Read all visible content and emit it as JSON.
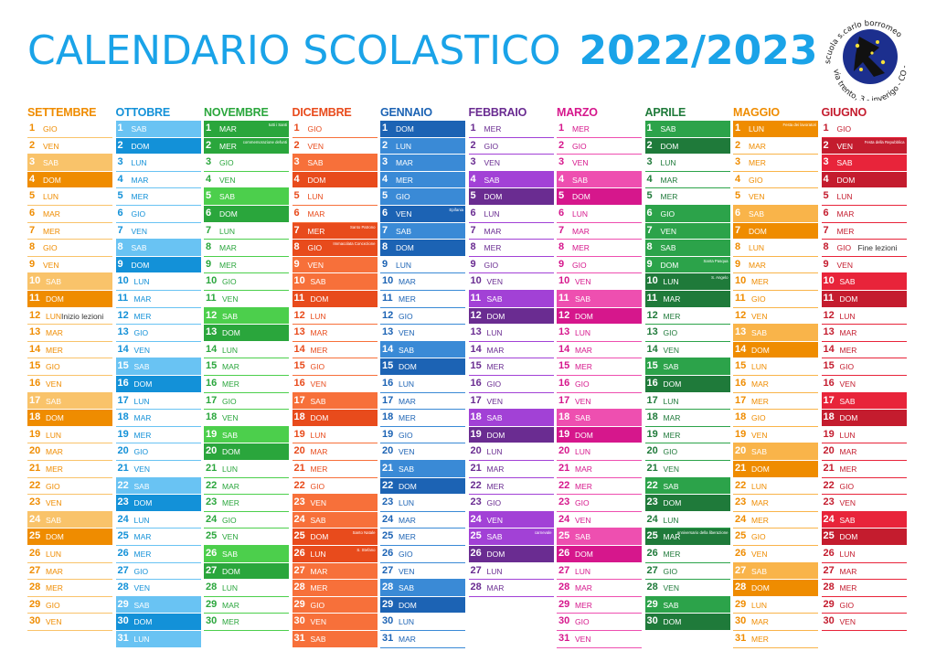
{
  "title": {
    "main": "CALENDARIO SCOLASTICO",
    "year": "2022/2023"
  },
  "logo": {
    "text": "scuola s.carlo borromeo - via trento, 3 - inverigo - CO -"
  },
  "months": [
    {
      "name": "SETTEMBRE",
      "color": "#ef8c00",
      "light": "#f9c36a",
      "days": 30,
      "startDow": 4,
      "highlights": {
        "3": "light",
        "4": "dark",
        "10": "light",
        "11": "dark",
        "17": "light",
        "18": "dark",
        "24": "light",
        "25": "dark"
      },
      "notes": {
        "12": "Inizio lezioni"
      }
    },
    {
      "name": "OTTOBRE",
      "color": "#1391d8",
      "light": "#69c3f3",
      "days": 31,
      "startDow": 6,
      "highlights": {
        "1": "light",
        "2": "dark",
        "8": "light",
        "9": "dark",
        "15": "light",
        "16": "dark",
        "22": "light",
        "23": "dark",
        "29": "light",
        "30": "dark",
        "31": "light"
      },
      "notes": {}
    },
    {
      "name": "NOVEMBRE",
      "color": "#2aa63c",
      "light": "#4ccf4c",
      "days": 30,
      "startDow": 2,
      "highlights": {
        "1": "dark",
        "2": "dark",
        "5": "light",
        "6": "dark",
        "12": "light",
        "13": "dark",
        "19": "light",
        "20": "dark",
        "26": "light",
        "27": "dark"
      },
      "notes": {
        "1": "tutti i Santi",
        "2": "commemorazione defunti"
      }
    },
    {
      "name": "DICEMBRE",
      "color": "#e84b1c",
      "light": "#f7703a",
      "days": 31,
      "startDow": 4,
      "highlights": {
        "3": "light",
        "4": "dark",
        "7": "dark",
        "8": "dark",
        "9": "light",
        "10": "light",
        "11": "dark",
        "17": "light",
        "18": "dark",
        "23": "light",
        "24": "light",
        "25": "dark",
        "26": "dark",
        "27": "light",
        "28": "light",
        "29": "light",
        "30": "light",
        "31": "light"
      },
      "notes": {
        "7": "Santo Patrono",
        "8": "Immacolata Concezione",
        "25": "Santo Natale",
        "26": "S. Stefano"
      }
    },
    {
      "name": "GENNAIO",
      "color": "#1c63b4",
      "light": "#3a8ad6",
      "days": 31,
      "startDow": 0,
      "highlights": {
        "1": "dark",
        "2": "light",
        "3": "light",
        "4": "light",
        "5": "light",
        "6": "dark",
        "7": "light",
        "8": "dark",
        "14": "light",
        "15": "dark",
        "21": "light",
        "22": "dark",
        "28": "light",
        "29": "dark"
      },
      "notes": {
        "6": "Epifania"
      }
    },
    {
      "name": "FEBBRAIO",
      "color": "#6a2c91",
      "light": "#a241d6",
      "days": 28,
      "startDow": 3,
      "highlights": {
        "4": "light",
        "5": "dark",
        "11": "light",
        "12": "dark",
        "18": "light",
        "19": "dark",
        "24": "light",
        "25": "light",
        "26": "dark"
      },
      "notes": {
        "25": "carnevale"
      }
    },
    {
      "name": "MARZO",
      "color": "#d6178c",
      "light": "#ee4fb0",
      "days": 31,
      "startDow": 3,
      "highlights": {
        "4": "light",
        "5": "dark",
        "11": "light",
        "12": "dark",
        "18": "light",
        "19": "dark",
        "25": "light",
        "26": "dark"
      },
      "notes": {}
    },
    {
      "name": "APRILE",
      "color": "#1f7a3a",
      "light": "#2ca34a",
      "days": 30,
      "startDow": 6,
      "highlights": {
        "1": "light",
        "2": "dark",
        "6": "light",
        "7": "light",
        "8": "light",
        "9": "light",
        "10": "dark",
        "11": "dark",
        "15": "light",
        "16": "dark",
        "22": "light",
        "23": "dark",
        "25": "dark",
        "29": "light",
        "30": "dark"
      },
      "notes": {
        "9": "Santa Pasqua",
        "10": "S. Angelo",
        "25": "anniversario della liberazione"
      }
    },
    {
      "name": "MAGGIO",
      "color": "#ef8c00",
      "light": "#f9b44a",
      "days": 31,
      "startDow": 1,
      "highlights": {
        "1": "dark",
        "6": "light",
        "7": "dark",
        "13": "light",
        "14": "dark",
        "20": "light",
        "21": "dark",
        "27": "light",
        "28": "dark"
      },
      "notes": {
        "1": "Festa dei lavoratori"
      }
    },
    {
      "name": "GIUGNO",
      "color": "#c41c2e",
      "light": "#e8243a",
      "days": 30,
      "startDow": 4,
      "highlights": {
        "2": "dark",
        "3": "light",
        "4": "dark",
        "10": "light",
        "11": "dark",
        "17": "light",
        "18": "dark",
        "24": "light",
        "25": "dark"
      },
      "notes": {
        "2": "Festa della Repubblica",
        "8": "Fine lezioni"
      }
    }
  ],
  "weekdays": [
    "DOM",
    "LUN",
    "MAR",
    "MER",
    "GIO",
    "VEN",
    "SAB"
  ]
}
